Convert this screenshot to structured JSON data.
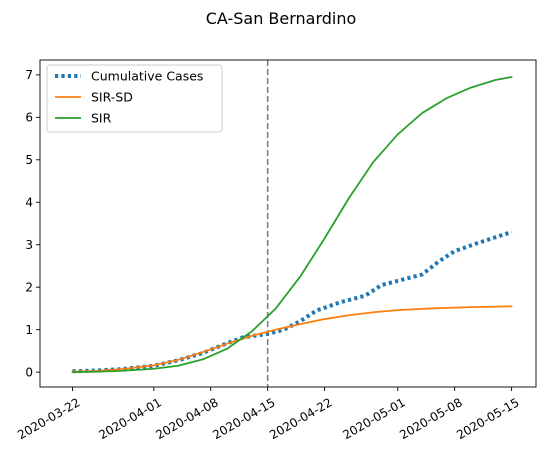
{
  "chart_data": {
    "type": "line",
    "title": "CA-San Bernardino",
    "xlabel": "",
    "ylabel": "",
    "x_axis": {
      "type": "date",
      "range": [
        "2020-03-18",
        "2020-05-18"
      ],
      "ticks": [
        "2020-03-22",
        "2020-04-01",
        "2020-04-08",
        "2020-04-15",
        "2020-04-22",
        "2020-05-01",
        "2020-05-08",
        "2020-05-15"
      ]
    },
    "y_axis": {
      "range": [
        -0.35,
        7.35
      ],
      "ticks": [
        "0",
        "1",
        "2",
        "3",
        "4",
        "5",
        "6",
        "7"
      ]
    },
    "grid": false,
    "legend_position": "top-left",
    "vertical_reference_line": {
      "x": "2020-04-15",
      "style": "dashed",
      "color": "#7f7f7f"
    },
    "series": [
      {
        "name": "Cumulative Cases",
        "style": "dotted",
        "color": "#1f77b4",
        "points": [
          [
            "2020-03-22",
            0.02
          ],
          [
            "2020-03-25",
            0.04
          ],
          [
            "2020-03-28",
            0.07
          ],
          [
            "2020-04-01",
            0.15
          ],
          [
            "2020-04-04",
            0.28
          ],
          [
            "2020-04-07",
            0.45
          ],
          [
            "2020-04-10",
            0.68
          ],
          [
            "2020-04-12",
            0.82
          ],
          [
            "2020-04-15",
            0.9
          ],
          [
            "2020-04-17",
            1.0
          ],
          [
            "2020-04-19",
            1.2
          ],
          [
            "2020-04-21",
            1.45
          ],
          [
            "2020-04-24",
            1.65
          ],
          [
            "2020-04-27",
            1.8
          ],
          [
            "2020-04-29",
            2.05
          ],
          [
            "2020-05-01",
            2.15
          ],
          [
            "2020-05-04",
            2.3
          ],
          [
            "2020-05-06",
            2.6
          ],
          [
            "2020-05-08",
            2.85
          ],
          [
            "2020-05-11",
            3.05
          ],
          [
            "2020-05-15",
            3.3
          ]
        ]
      },
      {
        "name": "SIR-SD",
        "style": "solid",
        "color": "#ff7f0e",
        "points": [
          [
            "2020-03-22",
            0.01
          ],
          [
            "2020-03-25",
            0.03
          ],
          [
            "2020-03-28",
            0.07
          ],
          [
            "2020-04-01",
            0.16
          ],
          [
            "2020-04-04",
            0.29
          ],
          [
            "2020-04-07",
            0.47
          ],
          [
            "2020-04-10",
            0.67
          ],
          [
            "2020-04-13",
            0.85
          ],
          [
            "2020-04-16",
            1.0
          ],
          [
            "2020-04-19",
            1.13
          ],
          [
            "2020-04-22",
            1.25
          ],
          [
            "2020-04-25",
            1.34
          ],
          [
            "2020-04-28",
            1.41
          ],
          [
            "2020-05-01",
            1.46
          ],
          [
            "2020-05-05",
            1.5
          ],
          [
            "2020-05-10",
            1.53
          ],
          [
            "2020-05-15",
            1.55
          ]
        ]
      },
      {
        "name": "SIR",
        "style": "solid",
        "color": "#2ca02c",
        "points": [
          [
            "2020-03-22",
            0.0
          ],
          [
            "2020-03-25",
            0.01
          ],
          [
            "2020-03-28",
            0.03
          ],
          [
            "2020-04-01",
            0.08
          ],
          [
            "2020-04-04",
            0.15
          ],
          [
            "2020-04-07",
            0.3
          ],
          [
            "2020-04-10",
            0.55
          ],
          [
            "2020-04-13",
            0.95
          ],
          [
            "2020-04-16",
            1.5
          ],
          [
            "2020-04-19",
            2.25
          ],
          [
            "2020-04-22",
            3.15
          ],
          [
            "2020-04-25",
            4.1
          ],
          [
            "2020-04-28",
            4.95
          ],
          [
            "2020-05-01",
            5.6
          ],
          [
            "2020-05-04",
            6.1
          ],
          [
            "2020-05-07",
            6.45
          ],
          [
            "2020-05-10",
            6.7
          ],
          [
            "2020-05-13",
            6.88
          ],
          [
            "2020-05-15",
            6.95
          ]
        ]
      }
    ]
  }
}
